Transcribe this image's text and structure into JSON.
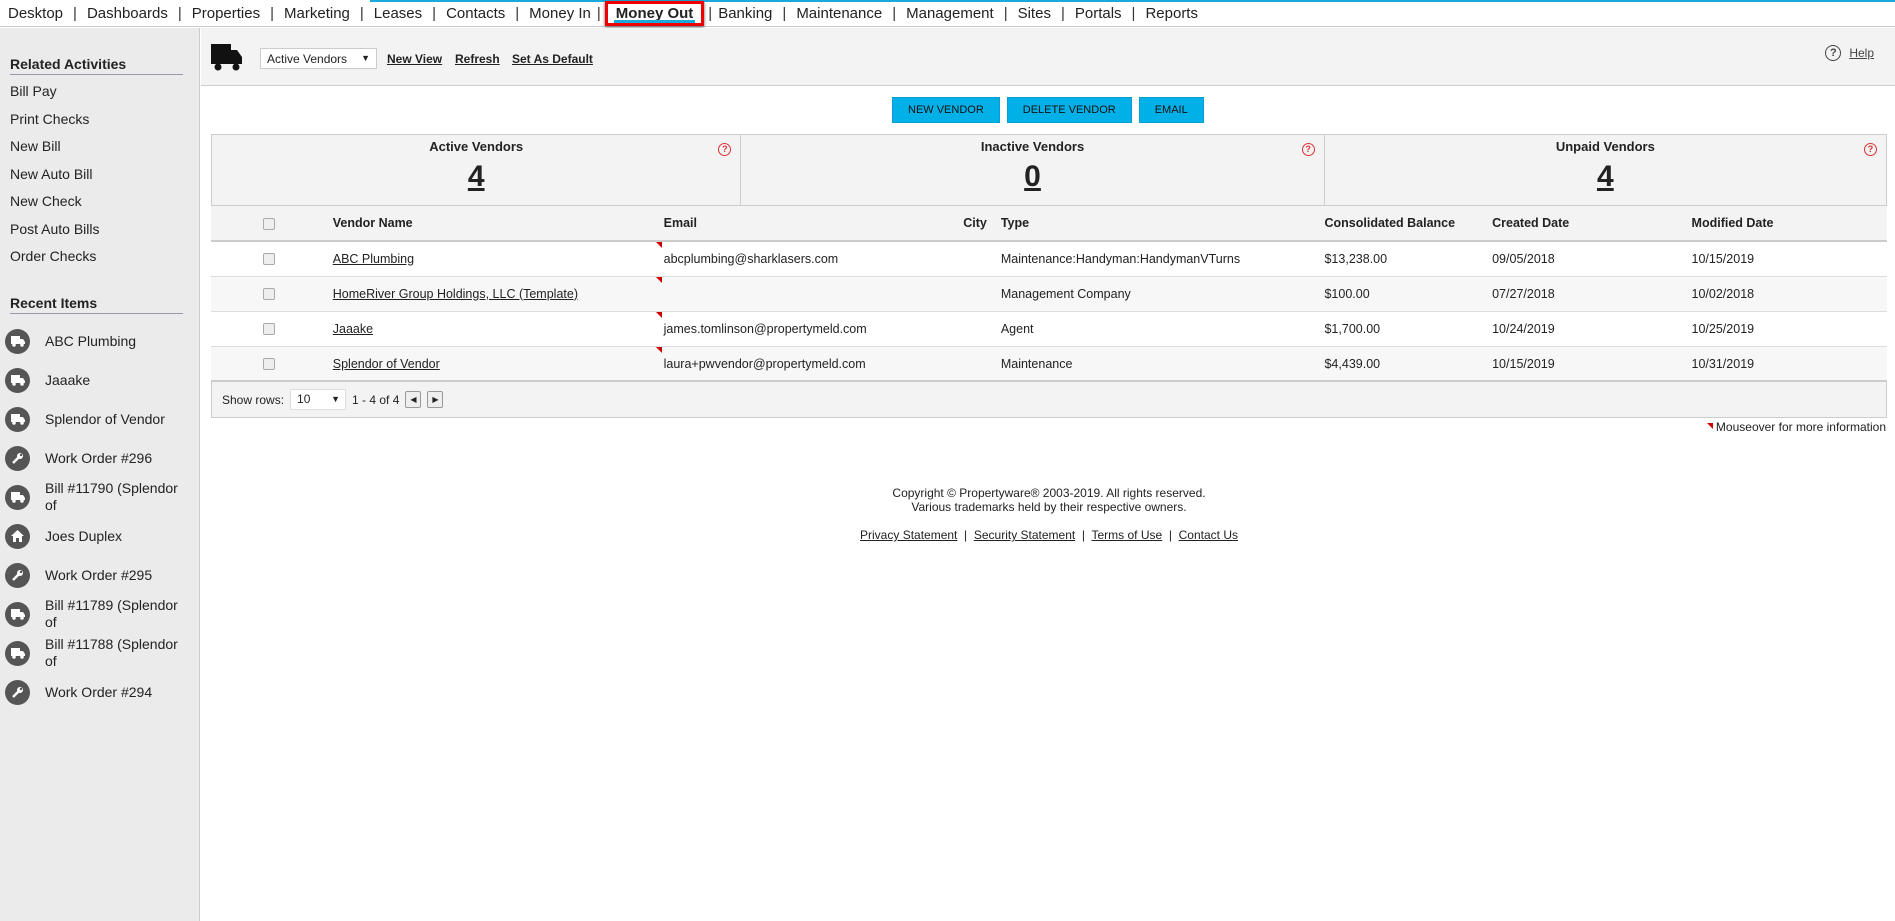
{
  "nav": {
    "items": [
      "Desktop",
      "Dashboards",
      "Properties",
      "Marketing",
      "Leases",
      "Contacts",
      "Money In",
      "Money Out",
      "Banking",
      "Maintenance",
      "Management",
      "Sites",
      "Portals",
      "Reports"
    ],
    "active": "Money Out"
  },
  "sidebar": {
    "related_title": "Related Activities",
    "related": [
      "Bill Pay",
      "Print Checks",
      "New Bill",
      "New Auto Bill",
      "New Check",
      "Post Auto Bills",
      "Order Checks"
    ],
    "recent_title": "Recent Items",
    "recent": [
      {
        "label": "ABC Plumbing",
        "icon": "truck"
      },
      {
        "label": "Jaaake",
        "icon": "truck"
      },
      {
        "label": "Splendor of Vendor",
        "icon": "truck"
      },
      {
        "label": "Work Order #296",
        "icon": "wrench"
      },
      {
        "label": "Bill #11790 (Splendor of",
        "icon": "truck"
      },
      {
        "label": "Joes Duplex",
        "icon": "home"
      },
      {
        "label": "Work Order #295",
        "icon": "wrench"
      },
      {
        "label": "Bill #11789 (Splendor of",
        "icon": "truck"
      },
      {
        "label": "Bill #11788 (Splendor of",
        "icon": "truck"
      },
      {
        "label": "Work Order #294",
        "icon": "wrench"
      }
    ]
  },
  "header": {
    "view": "Active Vendors",
    "new_view": "New View",
    "refresh": "Refresh",
    "set_default": "Set As Default",
    "help": "Help"
  },
  "buttons": {
    "new_vendor": "NEW VENDOR",
    "delete_vendor": "DELETE VENDOR",
    "email": "EMAIL"
  },
  "summary": [
    {
      "label": "Active Vendors",
      "value": "4"
    },
    {
      "label": "Inactive Vendors",
      "value": "0"
    },
    {
      "label": "Unpaid Vendors",
      "value": "4"
    }
  ],
  "table": {
    "columns": [
      "Vendor Name",
      "Email",
      "City",
      "Type",
      "Consolidated Balance",
      "Created Date",
      "Modified Date"
    ],
    "rows": [
      [
        "ABC Plumbing",
        "abcplumbing@sharklasers.com",
        "",
        "Maintenance:Handyman:HandymanVTurns",
        "$13,238.00",
        "09/05/2018",
        "10/15/2019"
      ],
      [
        "HomeRiver Group Holdings, LLC (Template)",
        "",
        "",
        "Management Company",
        "$100.00",
        "07/27/2018",
        "10/02/2018"
      ],
      [
        "Jaaake",
        "james.tomlinson@propertymeld.com",
        "",
        "Agent",
        "$1,700.00",
        "10/24/2019",
        "10/25/2019"
      ],
      [
        "Splendor of Vendor",
        "laura+pwvendor@propertymeld.com",
        "",
        "Maintenance",
        "$4,439.00",
        "10/15/2019",
        "10/31/2019"
      ]
    ]
  },
  "pager": {
    "label": "Show rows:",
    "rows": "10",
    "range": "1 - 4 of 4"
  },
  "mouseover": "Mouseover for more information",
  "footer": {
    "copyright": "Copyright © Propertyware® 2003-2019. All rights reserved.",
    "trademarks": "Various trademarks held by their respective owners.",
    "links": [
      "Privacy Statement",
      "Security Statement",
      "Terms of Use",
      "Contact Us"
    ]
  },
  "colors": {
    "accent": "#00b0e6",
    "highlight": "#e00000"
  }
}
